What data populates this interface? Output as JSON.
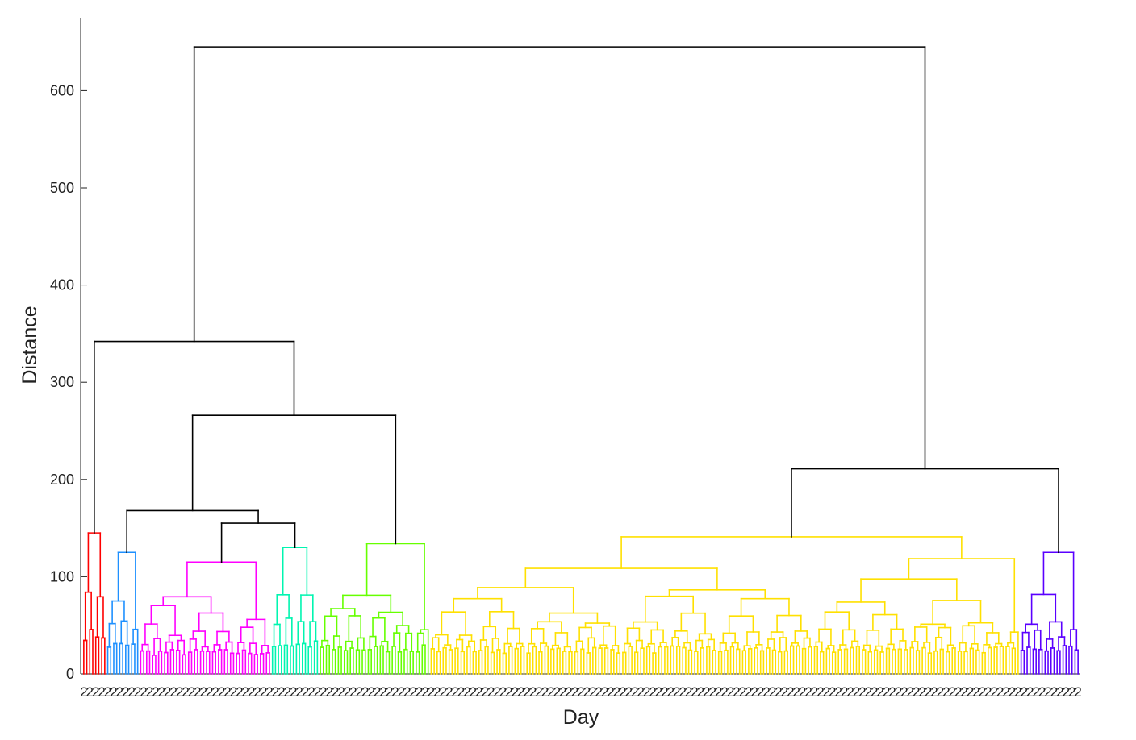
{
  "chart_data": {
    "type": "dendrogram",
    "xlabel": "Day",
    "ylabel": "Distance",
    "ylim": [
      0,
      680
    ],
    "yticks": [
      0,
      100,
      200,
      300,
      400,
      500,
      600
    ],
    "colors": {
      "top": "#000000",
      "red": "#ff0000",
      "blue": "#1e90ff",
      "magenta": "#ff00ff",
      "cyan": "#00f5b0",
      "green": "#66ff00",
      "yellow": "#ffe000",
      "purple": "#5a00ff"
    },
    "clusters": [
      {
        "color": "red",
        "leaves": 8,
        "height": 145
      },
      {
        "color": "blue",
        "leaves": 11,
        "height": 125
      },
      {
        "color": "magenta",
        "leaves": 44,
        "height": 115
      },
      {
        "color": "cyan",
        "leaves": 16,
        "height": 130
      },
      {
        "color": "green",
        "leaves": 37,
        "height": 134
      },
      {
        "color": "yellow",
        "leaves": 197,
        "height": 141
      },
      {
        "color": "purple",
        "leaves": 20,
        "height": 125
      }
    ],
    "merges": [
      {
        "height": 155,
        "joins": [
          "magenta",
          "cyan"
        ]
      },
      {
        "height": 168,
        "joins": [
          "blue",
          "magenta+cyan"
        ]
      },
      {
        "height": 266,
        "joins": [
          "blue+magenta+cyan",
          "green"
        ]
      },
      {
        "height": 342,
        "joins": [
          "red",
          "blue+magenta+cyan+green"
        ]
      },
      {
        "height": 211,
        "joins": [
          "yellow",
          "purple"
        ]
      },
      {
        "height": 645,
        "joins": [
          "left",
          "right"
        ]
      }
    ],
    "leaf_labels_visible": [
      "2",
      "8"
    ]
  }
}
